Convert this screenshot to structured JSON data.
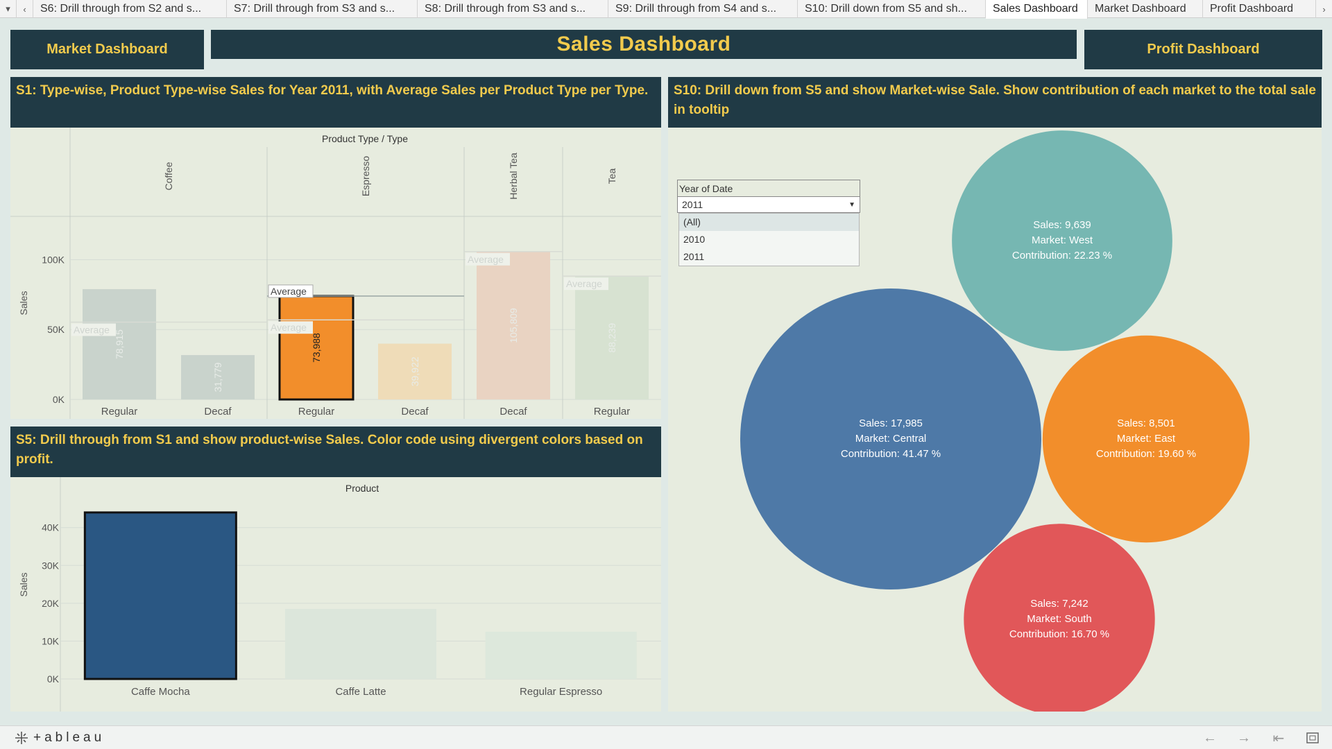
{
  "tabbar": {
    "menu_icon": "menu-down-icon",
    "prev_icon": "chevron-left-icon",
    "next_icon": "chevron-right-icon",
    "tabs": [
      {
        "label": "S6: Drill through from S2 and s..."
      },
      {
        "label": "S7: Drill through from S3 and s..."
      },
      {
        "label": "S8: Drill through from S3 and s..."
      },
      {
        "label": "S9: Drill through from S4 and s..."
      },
      {
        "label": "S10: Drill down from S5 and sh..."
      },
      {
        "label": "Sales Dashboard",
        "active": true
      },
      {
        "label": "Market Dashboard"
      },
      {
        "label": "Profit Dashboard"
      }
    ]
  },
  "header": {
    "market_button": "Market Dashboard",
    "title": "Sales Dashboard",
    "profit_button": "Profit Dashboard",
    "colors": {
      "navy": "#203a45",
      "gold": "#f2cb4d"
    }
  },
  "s1": {
    "title": "S1: Type-wise, Product Type-wise Sales for  Year 2011, with Average Sales per Product Type per Type.",
    "header_label": "Product Type / Type",
    "product_types": [
      "Coffee",
      "Espresso",
      "Herbal Tea",
      "Tea"
    ],
    "ylabel": "Sales",
    "yticks": [
      "100K",
      "50K",
      "0K"
    ],
    "average_label": "Average"
  },
  "s5": {
    "title": "S5: Drill through from S1 and show product-wise Sales. Color code using divergent colors based on profit.",
    "header_label": "Product",
    "ylabel": "Sales",
    "yticks": [
      "40K",
      "30K",
      "20K",
      "10K",
      "0K"
    ]
  },
  "s10": {
    "title": "S10: Drill down from S5 and show Market-wise Sale. Show  contribution of each market to the total sale in tooltip",
    "filter": {
      "label": "Year of Date",
      "selected": "2011",
      "options": [
        "(All)",
        "2010",
        "2011"
      ]
    }
  },
  "chart_data": [
    {
      "type": "bar",
      "title": "S1: Type-wise, Product Type-wise Sales for  Year 2011, with Average Sales per Product Type per Type.",
      "xlabel": "Product Type / Type",
      "ylabel": "Sales",
      "ylim": [
        0,
        130000
      ],
      "grid": true,
      "categories": [
        {
          "product_type": "Coffee",
          "type": "Regular",
          "value": 78915,
          "label": "78,915",
          "color": "#c9d3cc"
        },
        {
          "product_type": "Coffee",
          "type": "Decaf",
          "value": 31779,
          "label": "31,779",
          "color": "#c9d3cc"
        },
        {
          "product_type": "Espresso",
          "type": "Regular",
          "value": 73988,
          "label": "73,988",
          "color": "#f28e2b",
          "selected": true
        },
        {
          "product_type": "Espresso",
          "type": "Decaf",
          "value": 39922,
          "label": "39,922",
          "color": "#efdcb8"
        },
        {
          "product_type": "Herbal Tea",
          "type": "Decaf",
          "value": 105809,
          "label": "105,809",
          "color": "#e9d3c2"
        },
        {
          "product_type": "Tea",
          "type": "Regular",
          "value": 88239,
          "label": "88,239",
          "color": "#d7e2d1"
        }
      ],
      "reference_lines": [
        {
          "product_type": "Coffee",
          "label": "Average",
          "value": 55347
        },
        {
          "product_type": "Espresso",
          "label": "Average",
          "value": 73988
        },
        {
          "product_type": "Espresso",
          "label": "Average",
          "value": 56955
        },
        {
          "product_type": "Herbal Tea",
          "label": "Average",
          "value": 105809
        },
        {
          "product_type": "Tea",
          "label": "Average",
          "value": 88239
        }
      ]
    },
    {
      "type": "bar",
      "title": "S5: Drill through from S1 and show product-wise Sales. Color code using divergent colors based on profit.",
      "xlabel": "Product",
      "ylabel": "Sales",
      "ylim": [
        0,
        46000
      ],
      "grid": true,
      "categories": [
        "Caffe Mocha",
        "Caffe Latte",
        "Regular Espresso"
      ],
      "values": [
        44000,
        18500,
        12500
      ],
      "colors": [
        "#2a5783",
        "#dce6db",
        "#dde8dc"
      ]
    },
    {
      "type": "bubble",
      "title": "S10: Drill down from S5 and show Market-wise Sale. Show  contribution of each market to the total sale in tooltip",
      "series": [
        {
          "market": "West",
          "sales": 9639,
          "sales_label": "Sales: 9,639",
          "market_label": "Market: West",
          "contribution_label": "Contribution: 22.23 %",
          "color": "#76b7b2"
        },
        {
          "market": "Central",
          "sales": 17985,
          "sales_label": "Sales: 17,985",
          "market_label": "Market: Central",
          "contribution_label": "Contribution: 41.47 %",
          "color": "#4e79a7"
        },
        {
          "market": "East",
          "sales": 8501,
          "sales_label": "Sales: 8,501",
          "market_label": "Market: East",
          "contribution_label": "Contribution: 19.60 %",
          "color": "#f28e2b"
        },
        {
          "market": "South",
          "sales": 7242,
          "sales_label": "Sales: 7,242",
          "market_label": "Market: South",
          "contribution_label": "Contribution: 16.70 %",
          "color": "#e15759"
        }
      ]
    }
  ],
  "footer": {
    "logo_text": "+ableau",
    "icons": [
      "undo-icon",
      "redo-icon",
      "revert-icon",
      "fullscreen-icon"
    ]
  }
}
